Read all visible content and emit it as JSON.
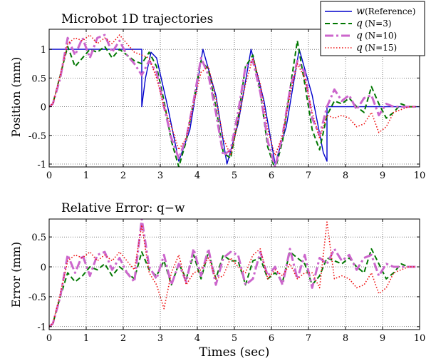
{
  "chart_data": [
    {
      "type": "line",
      "title": "Microbot 1D trajectories",
      "xlabel": "",
      "ylabel": "Position (mm)",
      "xlim": [
        0,
        10
      ],
      "ylim": [
        -1.05,
        1.35
      ],
      "xticks": [
        "0",
        "1",
        "2",
        "3",
        "4",
        "5",
        "6",
        "7",
        "8",
        "9",
        "10"
      ],
      "yticks": [
        "-1",
        "-0.5",
        "0",
        "0.5",
        "1"
      ],
      "grid": true,
      "legend": "top-right",
      "series": [
        {
          "name": "(Reference)",
          "symbol": "w",
          "color": "#0000cc",
          "style": "solid",
          "x": [
            0,
            2.5,
            2.5,
            2.6,
            2.75,
            2.9,
            3.2,
            3.5,
            3.8,
            4.15,
            4.5,
            4.8,
            5.1,
            5.45,
            5.8,
            6.1,
            6.4,
            6.75,
            7.1,
            7.4,
            7.5,
            7.5,
            10
          ],
          "y": [
            1,
            1,
            0,
            0.5,
            0.95,
            0.85,
            0,
            -0.95,
            -0.4,
            1,
            0.2,
            -1,
            -0.3,
            1,
            0.1,
            -1,
            -0.35,
            1,
            0.2,
            -0.8,
            -0.95,
            0,
            0
          ]
        },
        {
          "name": "(N=3)",
          "symbol": "q",
          "color": "#007700",
          "style": "dashed",
          "x": [
            0,
            0.1,
            0.3,
            0.5,
            0.7,
            0.9,
            1.1,
            1.3,
            1.5,
            1.7,
            1.9,
            2.1,
            2.3,
            2.5,
            2.7,
            2.9,
            3.1,
            3.3,
            3.5,
            3.7,
            3.9,
            4.1,
            4.3,
            4.5,
            4.7,
            4.9,
            5.1,
            5.3,
            5.5,
            5.7,
            5.9,
            6.1,
            6.3,
            6.5,
            6.7,
            6.9,
            7.1,
            7.3,
            7.5,
            7.7,
            7.9,
            8.1,
            8.3,
            8.5,
            8.7,
            8.9,
            9.1,
            9.3,
            9.5,
            9.7,
            9.9
          ],
          "y": [
            0,
            0.05,
            0.55,
            1.05,
            0.7,
            0.85,
            1.0,
            0.95,
            1.05,
            0.85,
            1.0,
            0.9,
            0.8,
            0.75,
            0.95,
            0.7,
            0.1,
            -0.6,
            -1.05,
            -0.6,
            0.1,
            0.8,
            0.65,
            0,
            -0.8,
            -0.9,
            -0.2,
            0.7,
            0.9,
            0.25,
            -0.7,
            -1.1,
            -0.6,
            0.3,
            1.15,
            0.4,
            -0.4,
            -0.75,
            -0.15,
            0.1,
            0.05,
            0.15,
            0,
            -0.1,
            0.35,
            0.05,
            -0.2,
            -0.1,
            0.05,
            0,
            0
          ]
        },
        {
          "name": "(N=10)",
          "symbol": "q",
          "color": "#cc66cc",
          "style": "dashdot",
          "x": [
            0,
            0.1,
            0.3,
            0.5,
            0.7,
            0.9,
            1.1,
            1.3,
            1.5,
            1.7,
            1.9,
            2.1,
            2.3,
            2.5,
            2.7,
            2.9,
            3.1,
            3.3,
            3.5,
            3.7,
            3.9,
            4.1,
            4.3,
            4.5,
            4.7,
            4.9,
            5.1,
            5.3,
            5.5,
            5.7,
            5.9,
            6.1,
            6.3,
            6.5,
            6.7,
            6.9,
            7.1,
            7.3,
            7.5,
            7.7,
            7.9,
            8.1,
            8.3,
            8.5,
            8.7,
            8.9,
            9.1,
            9.3,
            9.5,
            9.7,
            9.9
          ],
          "y": [
            0,
            0.05,
            0.5,
            1.2,
            0.9,
            1.2,
            0.85,
            1.2,
            1.25,
            0.95,
            1.15,
            0.9,
            0.75,
            0.55,
            0.8,
            0.6,
            0.0,
            -0.55,
            -0.9,
            -0.55,
            0.1,
            0.85,
            0.55,
            -0.1,
            -0.85,
            -0.75,
            -0.1,
            0.7,
            0.8,
            0.25,
            -0.6,
            -1.05,
            -0.5,
            0.3,
            0.8,
            0.6,
            -0.2,
            -0.5,
            0.0,
            0.3,
            0.1,
            0.2,
            -0.05,
            0.15,
            0.2,
            -0.15,
            0.05,
            0.0,
            0.0,
            0.0,
            0.0
          ]
        },
        {
          "name": "(N=15)",
          "symbol": "q",
          "color": "#ee1111",
          "style": "dotted",
          "x": [
            0,
            0.1,
            0.3,
            0.5,
            0.7,
            0.9,
            1.1,
            1.3,
            1.5,
            1.7,
            1.9,
            2.1,
            2.3,
            2.5,
            2.7,
            2.9,
            3.1,
            3.3,
            3.5,
            3.7,
            3.9,
            4.1,
            4.3,
            4.5,
            4.7,
            4.9,
            5.1,
            5.3,
            5.5,
            5.7,
            5.9,
            6.1,
            6.3,
            6.5,
            6.7,
            6.9,
            7.1,
            7.3,
            7.5,
            7.7,
            7.9,
            8.1,
            8.3,
            8.5,
            8.7,
            8.9,
            9.1,
            9.3,
            9.5,
            9.7,
            9.9
          ],
          "y": [
            0,
            0.05,
            0.55,
            1.1,
            1.2,
            1.15,
            1.25,
            1.1,
            1.2,
            1.1,
            1.25,
            1.1,
            0.95,
            0.9,
            0.85,
            0.5,
            0.0,
            -0.35,
            -0.75,
            -0.55,
            0.05,
            0.6,
            0.7,
            0.15,
            -0.55,
            -0.85,
            -0.25,
            0.4,
            0.85,
            0.4,
            -0.4,
            -0.85,
            -0.5,
            0.2,
            0.75,
            0.5,
            -0.1,
            -0.55,
            -0.15,
            -0.2,
            -0.15,
            -0.2,
            -0.35,
            -0.3,
            -0.1,
            -0.45,
            -0.35,
            -0.1,
            -0.05,
            0,
            0
          ]
        }
      ]
    },
    {
      "type": "line",
      "title": "Relative Error: q−w",
      "xlabel": "Times (sec)",
      "ylabel": "Error (mm)",
      "xlim": [
        0,
        10
      ],
      "ylim": [
        -1.05,
        0.8
      ],
      "xticks": [
        "0",
        "1",
        "2",
        "3",
        "4",
        "5",
        "6",
        "7",
        "8",
        "9",
        "10"
      ],
      "yticks": [
        "-1",
        "-0.5",
        "0",
        "0.5"
      ],
      "grid": true,
      "series": [
        {
          "name": "N=3",
          "color": "#007700",
          "style": "dashed",
          "x": [
            0,
            0.1,
            0.3,
            0.5,
            0.7,
            0.9,
            1.1,
            1.3,
            1.5,
            1.7,
            1.9,
            2.1,
            2.3,
            2.5,
            2.7,
            2.9,
            3.1,
            3.3,
            3.5,
            3.7,
            3.9,
            4.1,
            4.3,
            4.5,
            4.7,
            4.9,
            5.1,
            5.3,
            5.5,
            5.7,
            5.9,
            6.1,
            6.3,
            6.5,
            6.7,
            6.9,
            7.1,
            7.3,
            7.5,
            7.7,
            7.9,
            8.1,
            8.3,
            8.5,
            8.7,
            8.9,
            9.1,
            9.3,
            9.5,
            9.7,
            9.9
          ],
          "y": [
            -1,
            -0.95,
            -0.5,
            -0.1,
            -0.25,
            -0.15,
            0.0,
            -0.05,
            0.05,
            -0.15,
            0.0,
            -0.1,
            -0.2,
            0.25,
            -0.05,
            -0.15,
            0.1,
            -0.3,
            0.05,
            -0.2,
            0.2,
            -0.2,
            0.25,
            -0.2,
            0.2,
            0.1,
            0.1,
            -0.3,
            0.1,
            0.15,
            -0.2,
            -0.1,
            -0.25,
            0.25,
            0.15,
            0.05,
            -0.3,
            -0.15,
            0.15,
            0.1,
            0.05,
            0.15,
            0.0,
            -0.1,
            0.3,
            0.05,
            -0.2,
            -0.1,
            0.05,
            0,
            0
          ]
        },
        {
          "name": "N=10",
          "color": "#cc66cc",
          "style": "dashdot",
          "x": [
            0,
            0.1,
            0.3,
            0.5,
            0.7,
            0.9,
            1.1,
            1.3,
            1.5,
            1.7,
            1.9,
            2.1,
            2.3,
            2.5,
            2.7,
            2.9,
            3.1,
            3.3,
            3.5,
            3.7,
            3.9,
            4.1,
            4.3,
            4.5,
            4.7,
            4.9,
            5.1,
            5.3,
            5.5,
            5.7,
            5.9,
            6.1,
            6.3,
            6.5,
            6.7,
            6.9,
            7.1,
            7.3,
            7.5,
            7.7,
            7.9,
            8.1,
            8.3,
            8.5,
            8.7,
            8.9,
            9.1,
            9.3,
            9.5,
            9.7,
            9.9
          ],
          "y": [
            -1,
            -0.95,
            -0.5,
            0.2,
            -0.1,
            0.2,
            -0.15,
            0.2,
            0.25,
            -0.05,
            0.15,
            -0.1,
            -0.25,
            0.8,
            0.0,
            -0.2,
            0.2,
            -0.3,
            0.05,
            -0.25,
            0.3,
            -0.15,
            0.3,
            -0.3,
            0.15,
            0.25,
            0.2,
            -0.3,
            -0.2,
            0.25,
            -0.15,
            0.0,
            -0.3,
            0.3,
            -0.2,
            0.2,
            -0.35,
            0.15,
            0.05,
            0.3,
            0.1,
            0.2,
            -0.05,
            0.15,
            0.2,
            -0.15,
            0.05,
            0.0,
            0.0,
            0.0,
            0.0
          ]
        },
        {
          "name": "N=15",
          "color": "#ee1111",
          "style": "dotted",
          "x": [
            0,
            0.1,
            0.3,
            0.5,
            0.7,
            0.9,
            1.1,
            1.3,
            1.5,
            1.7,
            1.9,
            2.1,
            2.3,
            2.5,
            2.7,
            2.9,
            3.1,
            3.3,
            3.5,
            3.7,
            3.9,
            4.1,
            4.3,
            4.5,
            4.7,
            4.9,
            5.1,
            5.3,
            5.5,
            5.7,
            5.9,
            6.1,
            6.3,
            6.5,
            6.7,
            6.9,
            7.1,
            7.3,
            7.5,
            7.7,
            7.9,
            8.1,
            8.3,
            8.5,
            8.7,
            8.9,
            9.1,
            9.3,
            9.5,
            9.7,
            9.9
          ],
          "y": [
            -1,
            -0.95,
            -0.45,
            0.1,
            0.2,
            0.15,
            0.25,
            0.1,
            0.2,
            0.1,
            0.25,
            0.1,
            -0.05,
            0.7,
            -0.1,
            -0.3,
            -0.7,
            -0.1,
            0.2,
            -0.3,
            -0.1,
            -0.05,
            0.15,
            -0.2,
            -0.15,
            0.15,
            0.0,
            -0.1,
            0.2,
            0.3,
            -0.2,
            -0.05,
            -0.15,
            0.05,
            -0.2,
            -0.1,
            -0.1,
            -0.35,
            0.75,
            -0.2,
            -0.15,
            -0.2,
            -0.35,
            -0.3,
            -0.1,
            -0.45,
            -0.35,
            -0.1,
            -0.05,
            0,
            0
          ]
        }
      ]
    }
  ]
}
